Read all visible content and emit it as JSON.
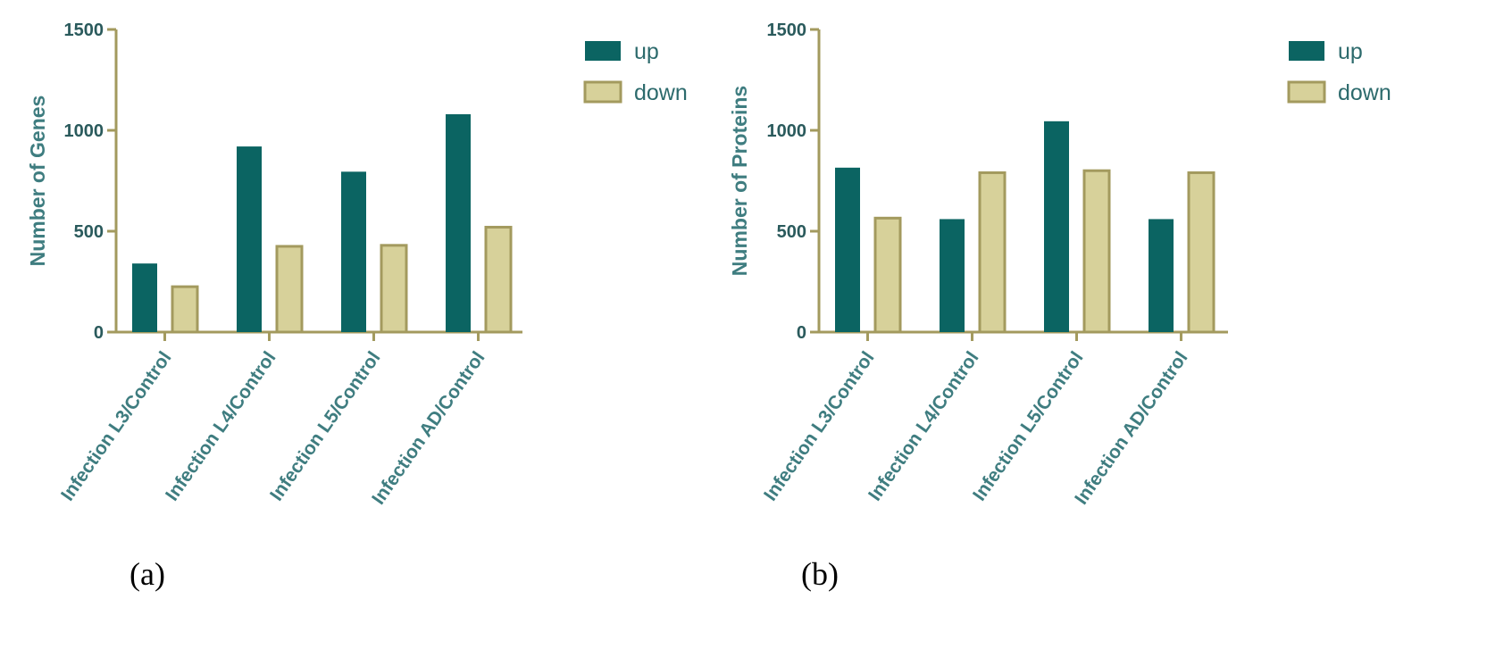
{
  "chart_data": [
    {
      "type": "bar",
      "panel_label": "(a)",
      "ylabel": "Number of Genes",
      "ylim": [
        0,
        1500
      ],
      "yticks": [
        "0",
        "500",
        "1000",
        "1500"
      ],
      "categories": [
        "Infection L3/Control",
        "Infection L4/Control",
        "Infection L5/Control",
        "Infection AD/Control"
      ],
      "series": [
        {
          "name": "up",
          "color": "#0b6462",
          "values": [
            340,
            920,
            795,
            1080
          ]
        },
        {
          "name": "down",
          "color": "#d7d19a",
          "values": [
            225,
            425,
            430,
            520
          ]
        }
      ],
      "legend": "top-right",
      "grid": false
    },
    {
      "type": "bar",
      "panel_label": "(b)",
      "ylabel": "Number of Proteins",
      "ylim": [
        0,
        1500
      ],
      "yticks": [
        "0",
        "500",
        "1000",
        "1500"
      ],
      "categories": [
        "Infection L3/Control",
        "Infection L4/Control",
        "Infection L5/Control",
        "Infection AD/Control"
      ],
      "series": [
        {
          "name": "up",
          "color": "#0b6462",
          "values": [
            815,
            560,
            1045,
            560
          ]
        },
        {
          "name": "down",
          "color": "#d7d19a",
          "values": [
            565,
            790,
            800,
            790
          ]
        }
      ],
      "legend": "top-right",
      "grid": false
    }
  ]
}
